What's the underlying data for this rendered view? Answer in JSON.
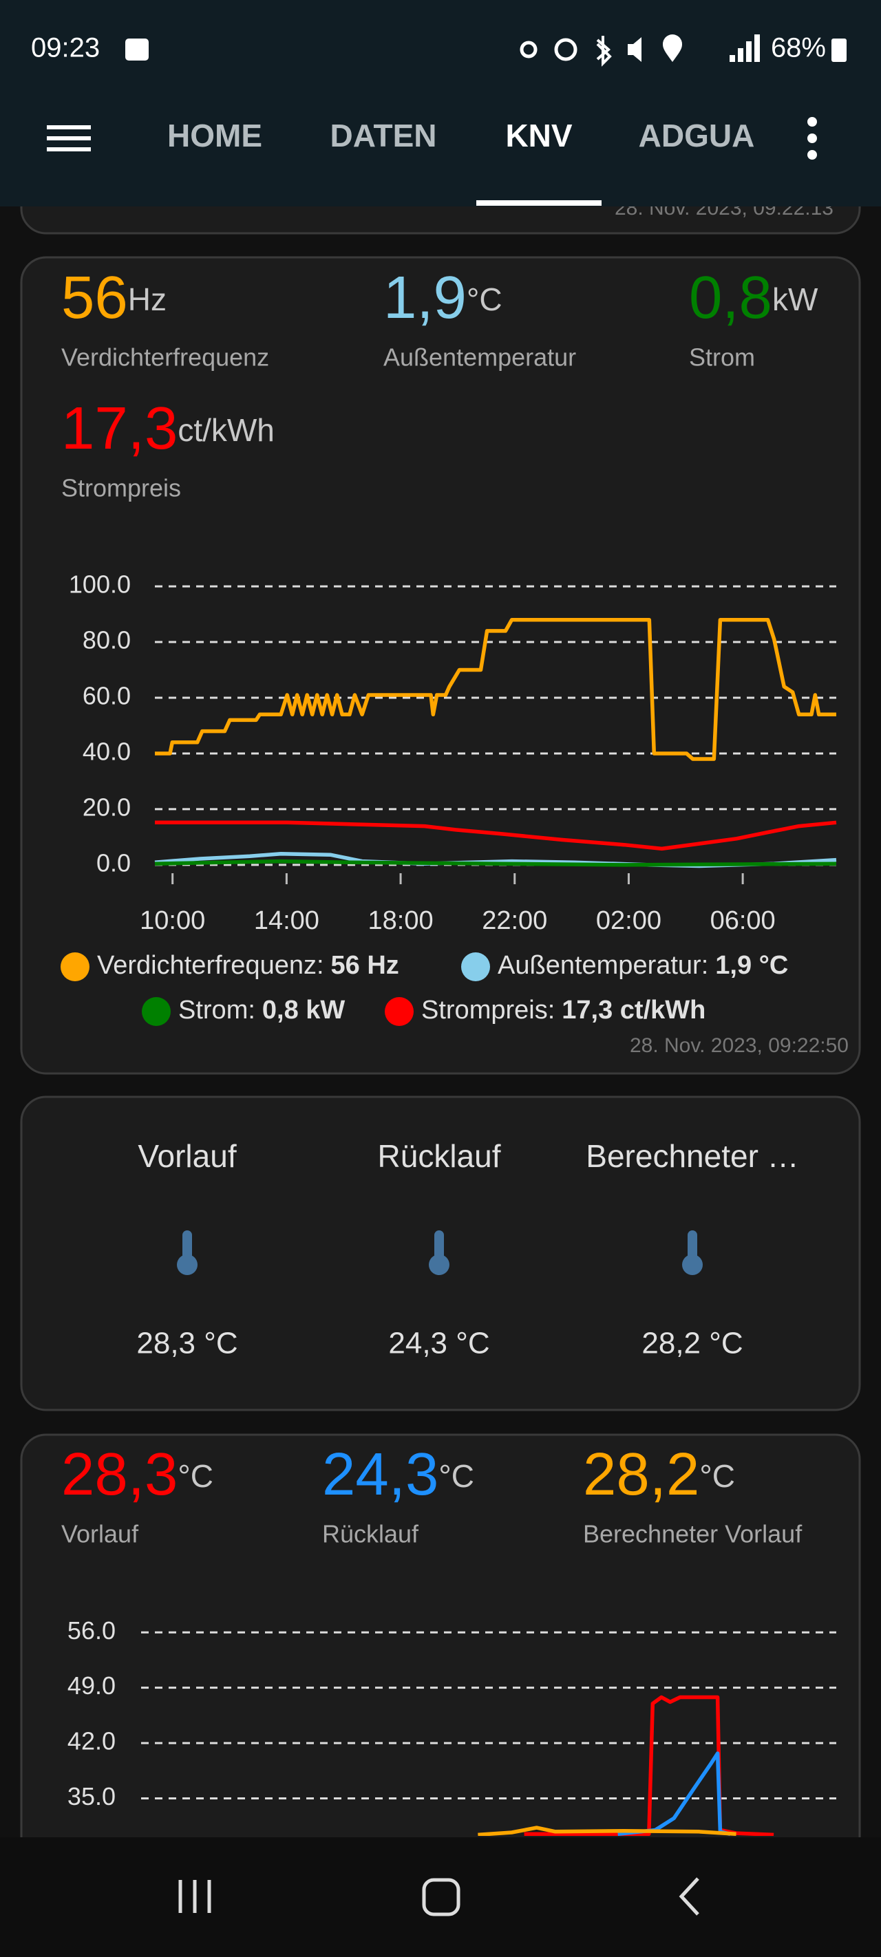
{
  "status_bar": {
    "time": "09:23",
    "battery": "68%"
  },
  "nav": {
    "tabs": [
      "HOME",
      "DATEN",
      "KNV",
      "ADGUA"
    ],
    "active": 2
  },
  "previous_card": {
    "timestamp": "28. Nov. 2023, 09:22:13"
  },
  "power_card": {
    "stats": [
      {
        "value": "56",
        "unit": "Hz",
        "label": "Verdichterfrequenz",
        "color": "#ffa600"
      },
      {
        "value": "1,9",
        "unit": "°C",
        "label": "Außentemperatur",
        "color": "#87ceeb"
      },
      {
        "value": "0,8",
        "unit": "kW",
        "label": "Strom",
        "color": "#008000"
      },
      {
        "value": "17,3",
        "unit": "ct/kWh",
        "label": "Strompreis",
        "color": "#ff0000"
      }
    ],
    "chart": {
      "type": "line",
      "xlim": [
        9.38,
        33.28
      ],
      "ylim": [
        -3,
        102
      ],
      "xticks": [
        {
          "value": 10,
          "label": "10:00"
        },
        {
          "value": 14,
          "label": "14:00"
        },
        {
          "value": 18,
          "label": "18:00"
        },
        {
          "value": 22,
          "label": "22:00"
        },
        {
          "value": 26,
          "label": "02:00"
        },
        {
          "value": 30,
          "label": "06:00"
        }
      ],
      "yticks": [
        {
          "value": 100,
          "label": "100.0"
        },
        {
          "value": 80,
          "label": "80.0"
        },
        {
          "value": 60,
          "label": "60.0"
        },
        {
          "value": 40,
          "label": "40.0"
        },
        {
          "value": 20,
          "label": "20.0"
        },
        {
          "value": 0,
          "label": "0.0"
        }
      ],
      "grid": true,
      "series": [
        {
          "legend_label": "Verdichterfrequenz:",
          "legend_value": "56 Hz",
          "color": "#ffa600",
          "x": [
            9.38,
            9.91,
            9.99,
            10.87,
            11.04,
            11.83,
            12.01,
            12.93,
            13.06,
            13.8,
            14.02,
            14.2,
            14.37,
            14.55,
            14.72,
            14.9,
            15.07,
            15.25,
            15.42,
            15.6,
            15.77,
            15.95,
            16.21,
            16.39,
            16.65,
            16.87,
            19.06,
            19.14,
            19.27,
            19.58,
            19.71,
            20.06,
            20.81,
            21.03,
            21.68,
            21.9,
            26.72,
            26.89,
            28.03,
            28.25,
            28.99,
            29.21,
            30.88,
            31.1,
            31.45,
            31.75,
            31.97,
            32.41,
            32.54,
            32.67,
            33.28
          ],
          "values": [
            40,
            40,
            44,
            44,
            48,
            48,
            52,
            52,
            54,
            54,
            61,
            54,
            61,
            54,
            61,
            54,
            61,
            54,
            61,
            54,
            61,
            54,
            54,
            61,
            54,
            61,
            61,
            54,
            61,
            61,
            64,
            70,
            70,
            84,
            84,
            88,
            88,
            40,
            40,
            38,
            38,
            88,
            88,
            81,
            64,
            62,
            54,
            54,
            61,
            54,
            54
          ]
        },
        {
          "legend_label": "Außentemperatur:",
          "legend_value": "1,9 °C",
          "color": "#87ceeb",
          "x": [
            9.38,
            10.96,
            12.71,
            13.8,
            15.55,
            16.65,
            18.84,
            21.9,
            24.09,
            26.72,
            28.47,
            31.1,
            33.28
          ],
          "values": [
            0.9,
            2.2,
            3.1,
            4,
            3.6,
            1.3,
            0.4,
            1.3,
            0.9,
            0,
            -0.4,
            0.4,
            1.8
          ]
        },
        {
          "legend_label": "Strom:",
          "legend_value": "0,8 kW",
          "color": "#008000",
          "x": [
            9.38,
            13.8,
            16.21,
            21.46,
            25.84,
            33.28
          ],
          "values": [
            0.4,
            1.3,
            0.9,
            0.4,
            0,
            0.4
          ]
        },
        {
          "legend_label": "Strompreis:",
          "legend_value": "17,3 ct/kWh",
          "color": "#ff0000",
          "x": [
            9.38,
            14.02,
            18.84,
            19.93,
            21.46,
            23.65,
            25.84,
            27.16,
            28.47,
            29.78,
            30.88,
            31.97,
            33.28
          ],
          "values": [
            15.2,
            15.2,
            13.9,
            12.6,
            11.2,
            9,
            7.2,
            5.8,
            7.6,
            9.4,
            11.7,
            13.9,
            15.2
          ]
        }
      ]
    },
    "timestamp": "28. Nov. 2023, 09:22:50"
  },
  "sensor_card": {
    "items": [
      {
        "title": "Vorlauf",
        "value": "28,3 °C"
      },
      {
        "title": "Rücklauf",
        "value": "24,3 °C"
      },
      {
        "title": "Berechneter …",
        "value": "28,2 °C"
      }
    ]
  },
  "temperature_card": {
    "stats": [
      {
        "value": "28,3",
        "unit": "°C",
        "label": "Vorlauf",
        "color": "#ff0000"
      },
      {
        "value": "24,3",
        "unit": "°C",
        "label": "Rücklauf",
        "color": "#1e90ff"
      },
      {
        "value": "28,2",
        "unit": "°C",
        "label": "Berechneter Vorlauf",
        "color": "#ffa600"
      }
    ],
    "chart": {
      "type": "line",
      "xlim": [
        9.38,
        33.28
      ],
      "ylim": [
        28,
        57.5
      ],
      "yticks": [
        {
          "value": 56,
          "label": "56.0"
        },
        {
          "value": 49,
          "label": "49.0"
        },
        {
          "value": 42,
          "label": "42.0"
        },
        {
          "value": 35,
          "label": "35.0"
        }
      ],
      "grid": true,
      "series": [
        {
          "color": "#ff0000",
          "x": [
            22.55,
            26.84,
            26.97,
            27.27,
            27.57,
            27.91,
            29.2,
            29.29,
            29.84,
            31.13
          ],
          "values": [
            30.5,
            30.5,
            47,
            47.8,
            47.2,
            47.8,
            47.8,
            31,
            30.6,
            30.4
          ]
        },
        {
          "color": "#1e90ff",
          "x": [
            25.77,
            27.06,
            27.7,
            28.34,
            28.99,
            29.2,
            29.29,
            29.63
          ],
          "values": [
            30.5,
            31,
            32.5,
            36,
            39.5,
            40.7,
            30.8,
            30.5
          ]
        },
        {
          "color": "#ffa600",
          "x": [
            20.96,
            22.12,
            22.98,
            23.62,
            25.98,
            28.55,
            29.84
          ],
          "values": [
            30.4,
            30.7,
            31.3,
            30.8,
            30.9,
            30.8,
            30.5
          ]
        }
      ]
    }
  }
}
